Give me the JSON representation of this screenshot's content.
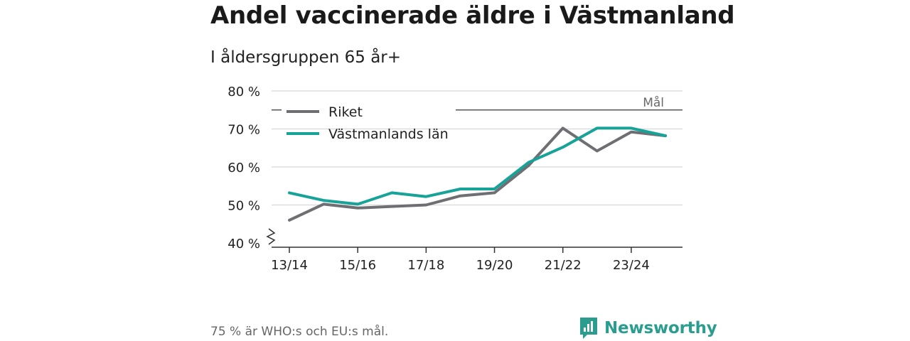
{
  "title": "Andel vaccinerade äldre i Västmanland",
  "subtitle": "I åldersgruppen 65 år+",
  "footnote": "75 % är WHO:s och EU:s mål.",
  "brand": {
    "name": "Newsworthy",
    "color": "#2a9d8f"
  },
  "chart_data": {
    "type": "line",
    "x": [
      "13/14",
      "14/15",
      "15/16",
      "16/17",
      "17/18",
      "18/19",
      "19/20",
      "20/21",
      "21/22",
      "22/23",
      "23/24",
      "24/25"
    ],
    "xtick_labels": [
      "13/14",
      "15/16",
      "17/18",
      "19/20",
      "21/22",
      "23/24"
    ],
    "ylim": [
      40,
      80
    ],
    "yticks": [
      40,
      50,
      60,
      70,
      80
    ],
    "ytick_labels": [
      "40 %",
      "50 %",
      "60 %",
      "70 %",
      "80 %"
    ],
    "y_axis_break": true,
    "grid": true,
    "legend": "top-left",
    "series": [
      {
        "name": "Riket",
        "color": "#6e6e73",
        "values": [
          46,
          50.2,
          49.2,
          49.6,
          50,
          52.4,
          53.2,
          60.4,
          70.2,
          64.2,
          69.2,
          68.2
        ]
      },
      {
        "name": "Västmanlands län",
        "color": "#17a398",
        "values": [
          53.2,
          51.2,
          50.2,
          53.2,
          52.2,
          54.2,
          54.2,
          61.2,
          65.2,
          70.2,
          70.2,
          68.2
        ]
      }
    ],
    "reference_line": {
      "value": 75,
      "label": "Mål",
      "color": "#555555"
    }
  }
}
